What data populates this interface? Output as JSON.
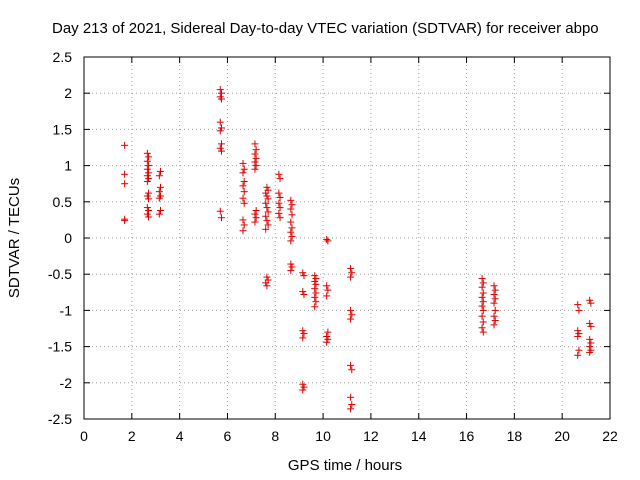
{
  "chart_data": {
    "type": "scatter",
    "title": "Day 213 of 2021, Sidereal Day-to-day VTEC variation (SDTVAR) for receiver abpo",
    "xlabel": "GPS time / hours",
    "ylabel": "SDTVAR / TECUs",
    "xlim": [
      0,
      22
    ],
    "ylim": [
      -2.5,
      2.5
    ],
    "xticks": [
      "0",
      "2",
      "4",
      "6",
      "8",
      "10",
      "12",
      "14",
      "16",
      "18",
      "20",
      "22"
    ],
    "yticks": [
      "2.5",
      "2",
      "1.5",
      "1",
      "0.5",
      "0",
      "-0.5",
      "-1",
      "-1.5",
      "-2",
      "-2.5"
    ],
    "grid": true,
    "marker": "+",
    "marker_color": "#dd0000",
    "series": [
      {
        "name": "SDTVAR",
        "points": [
          [
            1.7,
            1.28
          ],
          [
            1.7,
            0.88
          ],
          [
            1.7,
            0.75
          ],
          [
            1.7,
            0.26
          ],
          [
            1.7,
            0.24
          ],
          [
            2.65,
            1.17
          ],
          [
            2.7,
            1.12
          ],
          [
            2.65,
            1.06
          ],
          [
            2.7,
            1.0
          ],
          [
            2.65,
            0.95
          ],
          [
            2.7,
            0.9
          ],
          [
            2.65,
            0.86
          ],
          [
            2.7,
            0.82
          ],
          [
            2.65,
            0.78
          ],
          [
            2.7,
            0.62
          ],
          [
            2.65,
            0.58
          ],
          [
            2.7,
            0.54
          ],
          [
            2.65,
            0.42
          ],
          [
            2.7,
            0.38
          ],
          [
            2.65,
            0.33
          ],
          [
            2.7,
            0.29
          ],
          [
            3.2,
            0.92
          ],
          [
            3.15,
            0.86
          ],
          [
            3.2,
            0.7
          ],
          [
            3.15,
            0.64
          ],
          [
            3.2,
            0.58
          ],
          [
            3.15,
            0.55
          ],
          [
            3.2,
            0.38
          ],
          [
            3.15,
            0.33
          ],
          [
            5.7,
            2.05
          ],
          [
            5.75,
            2.0
          ],
          [
            5.7,
            1.95
          ],
          [
            5.75,
            1.92
          ],
          [
            5.7,
            1.6
          ],
          [
            5.75,
            1.52
          ],
          [
            5.7,
            1.48
          ],
          [
            5.75,
            1.3
          ],
          [
            5.7,
            1.24
          ],
          [
            5.75,
            1.2
          ],
          [
            5.7,
            0.37
          ],
          [
            5.75,
            0.28
          ],
          [
            6.65,
            1.03
          ],
          [
            6.7,
            0.95
          ],
          [
            6.65,
            0.9
          ],
          [
            6.7,
            0.78
          ],
          [
            6.65,
            0.72
          ],
          [
            6.7,
            0.64
          ],
          [
            6.65,
            0.55
          ],
          [
            6.7,
            0.48
          ],
          [
            6.65,
            0.25
          ],
          [
            6.7,
            0.18
          ],
          [
            6.65,
            0.1
          ],
          [
            7.15,
            1.3
          ],
          [
            7.2,
            1.22
          ],
          [
            7.15,
            1.16
          ],
          [
            7.2,
            1.1
          ],
          [
            7.15,
            1.05
          ],
          [
            7.2,
            1.0
          ],
          [
            7.15,
            0.95
          ],
          [
            7.2,
            0.38
          ],
          [
            7.15,
            0.33
          ],
          [
            7.2,
            0.28
          ],
          [
            7.15,
            0.22
          ],
          [
            7.65,
            0.7
          ],
          [
            7.7,
            0.66
          ],
          [
            7.6,
            0.62
          ],
          [
            7.65,
            0.58
          ],
          [
            7.7,
            0.54
          ],
          [
            7.6,
            0.48
          ],
          [
            7.65,
            0.42
          ],
          [
            7.7,
            0.36
          ],
          [
            7.6,
            0.3
          ],
          [
            7.65,
            0.24
          ],
          [
            7.7,
            0.18
          ],
          [
            7.6,
            0.12
          ],
          [
            7.65,
            -0.54
          ],
          [
            7.7,
            -0.58
          ],
          [
            7.6,
            -0.62
          ],
          [
            7.65,
            -0.66
          ],
          [
            8.15,
            0.88
          ],
          [
            8.2,
            0.82
          ],
          [
            8.15,
            0.62
          ],
          [
            8.2,
            0.56
          ],
          [
            8.15,
            0.48
          ],
          [
            8.2,
            0.42
          ],
          [
            8.15,
            0.34
          ],
          [
            8.2,
            0.28
          ],
          [
            8.65,
            0.52
          ],
          [
            8.7,
            0.46
          ],
          [
            8.65,
            0.4
          ],
          [
            8.7,
            0.32
          ],
          [
            8.65,
            0.22
          ],
          [
            8.7,
            0.14
          ],
          [
            8.65,
            0.08
          ],
          [
            8.7,
            0.02
          ],
          [
            8.65,
            -0.04
          ],
          [
            8.65,
            -0.36
          ],
          [
            8.7,
            -0.4
          ],
          [
            8.65,
            -0.45
          ],
          [
            9.15,
            -0.48
          ],
          [
            9.2,
            -0.52
          ],
          [
            9.15,
            -0.74
          ],
          [
            9.2,
            -0.78
          ],
          [
            9.15,
            -1.28
          ],
          [
            9.2,
            -1.32
          ],
          [
            9.15,
            -1.38
          ],
          [
            9.15,
            -2.02
          ],
          [
            9.2,
            -2.06
          ],
          [
            9.15,
            -2.1
          ],
          [
            9.65,
            -0.52
          ],
          [
            9.7,
            -0.56
          ],
          [
            9.65,
            -0.6
          ],
          [
            9.7,
            -0.64
          ],
          [
            9.65,
            -0.7
          ],
          [
            9.7,
            -0.76
          ],
          [
            9.65,
            -0.82
          ],
          [
            9.7,
            -0.88
          ],
          [
            9.65,
            -0.95
          ],
          [
            10.15,
            -0.02
          ],
          [
            10.2,
            -0.04
          ],
          [
            10.15,
            -0.66
          ],
          [
            10.2,
            -0.72
          ],
          [
            10.15,
            -0.8
          ],
          [
            10.2,
            -1.3
          ],
          [
            10.15,
            -1.36
          ],
          [
            10.2,
            -1.4
          ],
          [
            10.15,
            -1.44
          ],
          [
            11.15,
            -0.42
          ],
          [
            11.2,
            -0.48
          ],
          [
            11.15,
            -0.54
          ],
          [
            11.15,
            -1.0
          ],
          [
            11.2,
            -1.06
          ],
          [
            11.15,
            -1.12
          ],
          [
            11.15,
            -1.76
          ],
          [
            11.2,
            -1.82
          ],
          [
            11.15,
            -2.2
          ],
          [
            11.2,
            -2.3
          ],
          [
            11.15,
            -2.36
          ],
          [
            16.65,
            -0.56
          ],
          [
            16.7,
            -0.62
          ],
          [
            16.65,
            -0.68
          ],
          [
            16.7,
            -0.76
          ],
          [
            16.65,
            -0.82
          ],
          [
            16.7,
            -0.88
          ],
          [
            16.65,
            -0.94
          ],
          [
            16.7,
            -1.0
          ],
          [
            16.65,
            -1.08
          ],
          [
            16.7,
            -1.16
          ],
          [
            16.65,
            -1.24
          ],
          [
            16.7,
            -1.3
          ],
          [
            17.15,
            -0.66
          ],
          [
            17.2,
            -0.72
          ],
          [
            17.15,
            -0.78
          ],
          [
            17.2,
            -0.84
          ],
          [
            17.15,
            -0.9
          ],
          [
            17.2,
            -1.0
          ],
          [
            17.15,
            -1.08
          ],
          [
            17.2,
            -1.14
          ],
          [
            17.15,
            -1.2
          ],
          [
            20.65,
            -0.92
          ],
          [
            20.7,
            -1.0
          ],
          [
            20.65,
            -1.28
          ],
          [
            20.7,
            -1.32
          ],
          [
            20.65,
            -1.36
          ],
          [
            20.7,
            -1.55
          ],
          [
            20.65,
            -1.62
          ],
          [
            21.15,
            -0.86
          ],
          [
            21.2,
            -0.9
          ],
          [
            21.15,
            -1.18
          ],
          [
            21.2,
            -1.22
          ],
          [
            21.15,
            -1.4
          ],
          [
            21.2,
            -1.45
          ],
          [
            21.15,
            -1.5
          ],
          [
            21.2,
            -1.55
          ],
          [
            21.15,
            -1.58
          ]
        ]
      }
    ]
  }
}
